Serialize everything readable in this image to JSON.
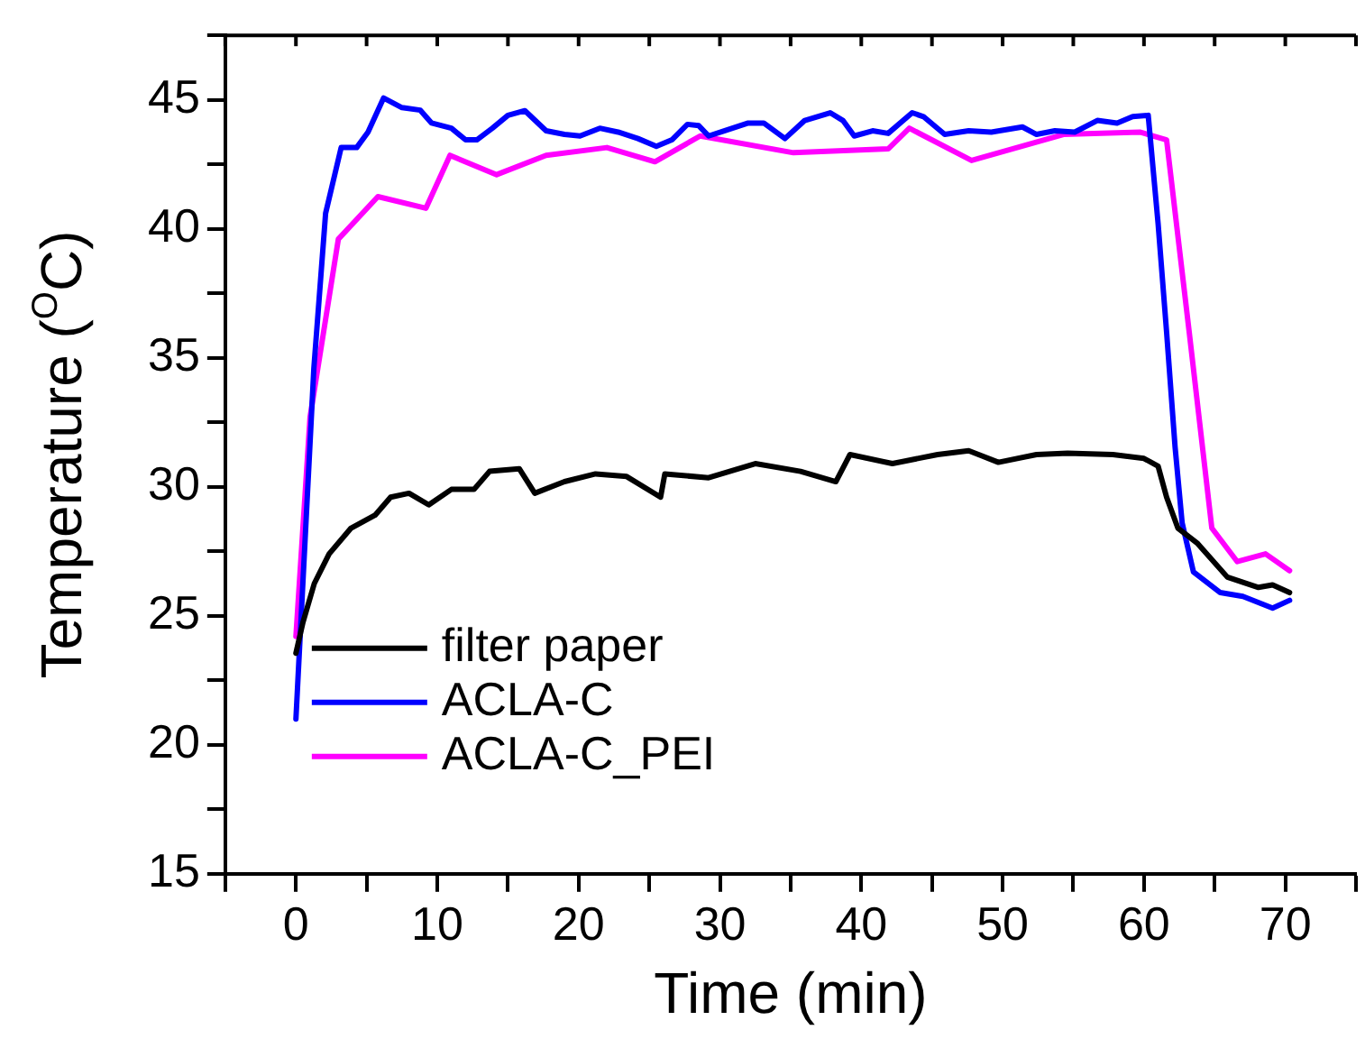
{
  "chart_data": {
    "type": "line",
    "xlabel": "Time (min)",
    "ylabel": "Temperature ($^{O}$C)",
    "xlim": [
      -5,
      75
    ],
    "xticks": [
      {
        "value": -5,
        "label": null
      },
      0,
      {
        "value": 5,
        "label": null
      },
      10,
      {
        "value": 15,
        "label": null
      },
      20,
      {
        "value": 25,
        "label": null
      },
      30,
      {
        "value": 35,
        "label": null
      },
      40,
      {
        "value": 45,
        "label": null
      },
      50,
      {
        "value": 55,
        "label": null
      },
      60,
      {
        "value": 65,
        "label": null
      },
      70,
      {
        "value": 75,
        "label": null
      }
    ],
    "ylim": [
      15,
      47.5
    ],
    "yticks": [
      15,
      {
        "value": 17.5,
        "label": null
      },
      20,
      {
        "value": 22.5,
        "label": null
      },
      25,
      {
        "value": 27.5,
        "label": null
      },
      30,
      {
        "value": 32.5,
        "label": null
      },
      35,
      {
        "value": 37.5,
        "label": null
      },
      40,
      {
        "value": 42.5,
        "label": null
      },
      45,
      {
        "value": 47.5,
        "label": null
      }
    ],
    "grid": false,
    "legend": "bottom left",
    "marker": "none",
    "line_style": "solid",
    "series": [
      {
        "name": "filter paper",
        "color": "#000000",
        "x": [
          0,
          0.5,
          1.3,
          2.35,
          3.9,
          5.6,
          6.7,
          8.0,
          9.4,
          11.0,
          12.6,
          13.7,
          15.8,
          16.9,
          19.0,
          21.2,
          23.4,
          25.8,
          26.1,
          29.2,
          32.5,
          35.7,
          38.2,
          39.2,
          42.2,
          45.4,
          47.6,
          49.7,
          52.4,
          54.6,
          57.8,
          60.0,
          61.0,
          61.6,
          62.4,
          63.8,
          65.9,
          68.1,
          69.1,
          70.3
        ],
        "values": [
          23.55,
          24.75,
          26.25,
          27.4,
          28.4,
          28.9,
          29.6,
          29.75,
          29.3,
          29.9,
          29.9,
          30.6,
          30.7,
          29.75,
          30.2,
          30.5,
          30.4,
          29.6,
          30.5,
          30.35,
          30.9,
          30.6,
          30.2,
          31.25,
          30.9,
          31.25,
          31.4,
          30.95,
          31.25,
          31.3,
          31.25,
          31.1,
          30.8,
          29.6,
          28.4,
          27.8,
          26.5,
          26.1,
          26.2,
          25.9
        ]
      },
      {
        "name": "ACLA-C",
        "color": "#0000ff",
        "x": [
          0,
          1.27,
          2.1,
          3.2,
          4.3,
          5.1,
          6.2,
          7.5,
          8.8,
          9.6,
          11.0,
          12.0,
          12.8,
          13.9,
          15.0,
          16.2,
          17.7,
          19.0,
          20.1,
          21.5,
          22.8,
          24.2,
          25.5,
          26.6,
          27.7,
          28.5,
          29.2,
          30.3,
          32.0,
          33.1,
          34.6,
          36.0,
          37.8,
          38.7,
          39.5,
          40.8,
          41.9,
          43.6,
          44.4,
          45.9,
          47.6,
          49.2,
          51.4,
          52.4,
          53.7,
          55.1,
          56.7,
          58.1,
          59.2,
          60.3,
          61.0,
          61.6,
          62.2,
          62.7,
          63.5,
          65.4,
          67.0,
          69.1,
          70.3
        ],
        "values": [
          21,
          34.6,
          40.6,
          43.15,
          43.15,
          43.75,
          45.07,
          44.7,
          44.6,
          44.1,
          43.9,
          43.45,
          43.45,
          43.9,
          44.4,
          44.58,
          43.8,
          43.66,
          43.6,
          43.9,
          43.75,
          43.5,
          43.2,
          43.45,
          44.05,
          44.0,
          43.6,
          43.8,
          44.1,
          44.1,
          43.5,
          44.2,
          44.5,
          44.2,
          43.6,
          43.8,
          43.7,
          44.5,
          44.35,
          43.66,
          43.8,
          43.75,
          43.95,
          43.66,
          43.8,
          43.75,
          44.2,
          44.1,
          44.35,
          44.4,
          40.2,
          36.0,
          31.55,
          28.6,
          26.7,
          25.9,
          25.75,
          25.3,
          25.6
        ]
      },
      {
        "name": "ACLA-C_PEI",
        "color": "#ff00ff",
        "x": [
          0,
          1.0,
          3.0,
          5.8,
          9.2,
          10.9,
          14.2,
          17.7,
          22.0,
          25.4,
          28.6,
          35.2,
          41.9,
          43.4,
          47.8,
          54.3,
          59.7,
          61.6,
          63.2,
          64.8,
          66.6,
          68.6,
          70.3
        ],
        "values": [
          24.2,
          32.7,
          39.6,
          41.25,
          40.8,
          42.85,
          42.1,
          42.85,
          43.15,
          42.6,
          43.6,
          42.95,
          43.1,
          43.9,
          42.65,
          43.66,
          43.75,
          43.45,
          36.0,
          28.4,
          27.1,
          27.4,
          26.75
        ]
      }
    ]
  }
}
